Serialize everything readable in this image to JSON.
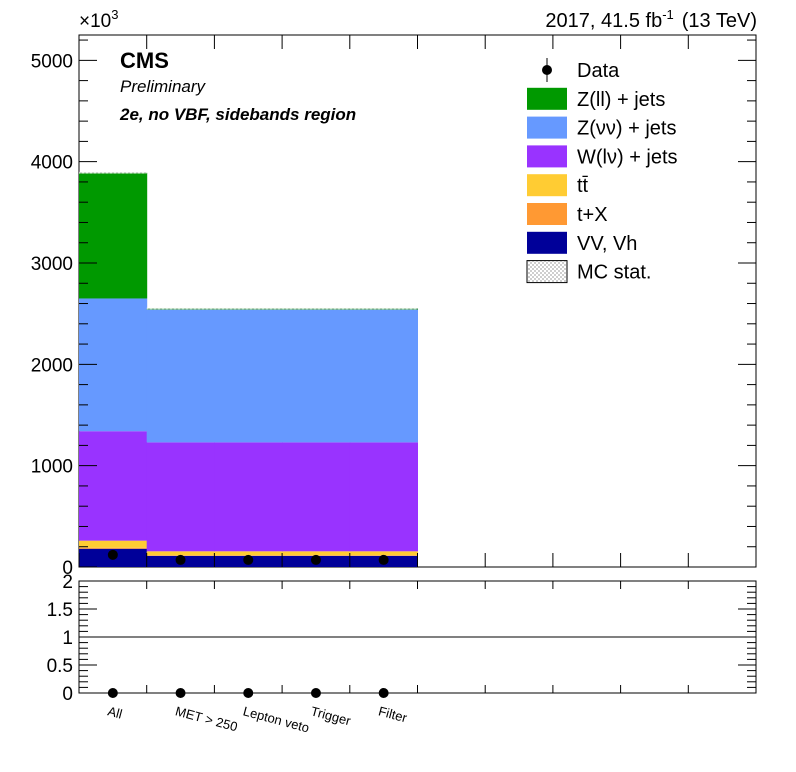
{
  "header": {
    "lumi": "2017, 41.5 fb",
    "lumi_sup": "-1",
    "energy": "(13 TeV)",
    "exponent_base": "×10",
    "exponent_power": "3",
    "experiment": "CMS",
    "status": "Preliminary",
    "region": "2e, no VBF, sidebands region"
  },
  "legend": {
    "items": [
      {
        "label": "Data",
        "kind": "marker",
        "color": "#000000"
      },
      {
        "label": "Z(ll) + jets",
        "kind": "box",
        "color": "#009900"
      },
      {
        "label": "Z(νν) + jets",
        "kind": "box",
        "color": "#6699ff"
      },
      {
        "label": "W(lν) + jets",
        "kind": "box",
        "color": "#9933ff"
      },
      {
        "label": "tt̄",
        "kind": "box",
        "color": "#ffcc33"
      },
      {
        "label": "t+X",
        "kind": "box",
        "color": "#ff9933"
      },
      {
        "label": "VV, Vh",
        "kind": "box",
        "color": "#000099"
      },
      {
        "label": "MC stat.",
        "kind": "hatch",
        "color": "#777777"
      }
    ]
  },
  "chart_data": [
    {
      "type": "bar",
      "stacked": true,
      "categories": [
        "All",
        "MET > 250",
        "Lepton veto",
        "Trigger",
        "Filter"
      ],
      "ylim": [
        0,
        5250
      ],
      "y_ticks": [
        0,
        1000,
        2000,
        3000,
        4000,
        5000
      ],
      "y_ticks_label": [
        "0",
        "1000",
        "2000",
        "3000",
        "4000",
        "5000"
      ],
      "y_multiplier_note": "values in units of 10^3",
      "n_bins_axis": 10,
      "series": [
        {
          "name": "VV, Vh",
          "color": "#000099",
          "values": [
            180,
            110,
            110,
            110,
            110
          ]
        },
        {
          "name": "t+X",
          "color": "#ff9933",
          "values": [
            10,
            5,
            5,
            5,
            5
          ]
        },
        {
          "name": "tt̄",
          "color": "#ffcc33",
          "values": [
            70,
            40,
            40,
            40,
            40
          ]
        },
        {
          "name": "W(lν) + jets",
          "color": "#9933ff",
          "values": [
            1080,
            1075,
            1075,
            1075,
            1075
          ]
        },
        {
          "name": "Z(νν) + jets",
          "color": "#6699ff",
          "values": [
            1310,
            1310,
            1310,
            1310,
            1310
          ]
        },
        {
          "name": "Z(ll) + jets",
          "color": "#009900",
          "values": [
            1240,
            10,
            10,
            10,
            10
          ]
        }
      ],
      "data": {
        "name": "Data",
        "values": [
          120,
          70,
          70,
          70,
          70
        ]
      }
    },
    {
      "type": "scatter",
      "categories": [
        "All",
        "MET > 250",
        "Lepton veto",
        "Trigger",
        "Filter"
      ],
      "ylim": [
        0,
        2
      ],
      "y_ticks": [
        0,
        0.5,
        1,
        1.5,
        2
      ],
      "y_ticks_label": [
        "0",
        "0.5",
        "1",
        "1.5",
        "2"
      ],
      "reference_line": 1,
      "ratio_values": [
        0,
        0,
        0,
        0,
        0
      ]
    }
  ]
}
